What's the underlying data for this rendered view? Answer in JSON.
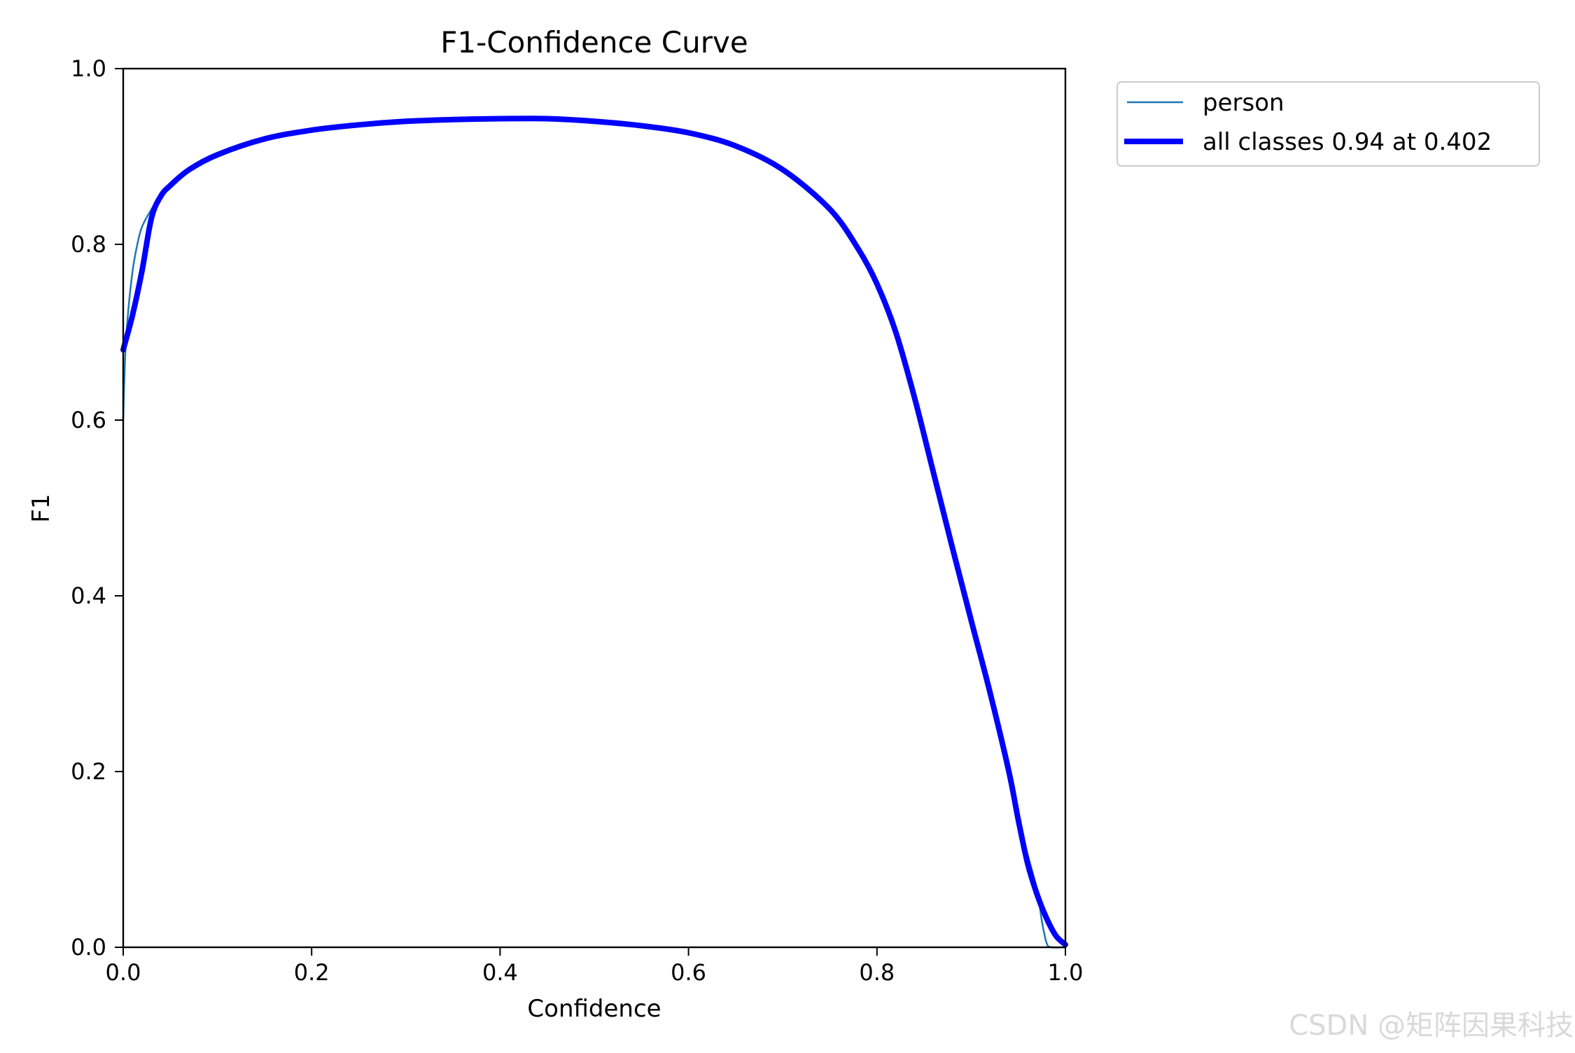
{
  "chart_data": {
    "type": "line",
    "title": "F1-Confidence Curve",
    "xlabel": "Confidence",
    "ylabel": "F1",
    "xlim": [
      0.0,
      1.0
    ],
    "ylim": [
      0.0,
      1.0
    ],
    "grid": false,
    "legend_position": "outside top-right",
    "x_ticks": [
      0.0,
      0.2,
      0.4,
      0.6,
      0.8,
      1.0
    ],
    "y_ticks": [
      0.0,
      0.2,
      0.4,
      0.6,
      0.8,
      1.0
    ],
    "x_tick_labels": [
      "0.0",
      "0.2",
      "0.4",
      "0.6",
      "0.8",
      "1.0"
    ],
    "y_tick_labels": [
      "0.0",
      "0.2",
      "0.4",
      "0.6",
      "0.8",
      "1.0"
    ],
    "series": [
      {
        "name": "person",
        "color": "#1f77b4",
        "style": "thin",
        "x": [
          0.0,
          0.002,
          0.005,
          0.01,
          0.015,
          0.02,
          0.03,
          0.04,
          0.05,
          0.07,
          0.1,
          0.15,
          0.2,
          0.25,
          0.3,
          0.35,
          0.4,
          0.45,
          0.5,
          0.55,
          0.6,
          0.65,
          0.7,
          0.75,
          0.78,
          0.8,
          0.82,
          0.84,
          0.86,
          0.88,
          0.9,
          0.92,
          0.94,
          0.95,
          0.96,
          0.97,
          0.975,
          0.98,
          0.985,
          1.0
        ],
        "y": [
          0.6,
          0.67,
          0.72,
          0.77,
          0.8,
          0.82,
          0.84,
          0.855,
          0.867,
          0.885,
          0.902,
          0.92,
          0.93,
          0.936,
          0.94,
          0.942,
          0.943,
          0.943,
          0.94,
          0.935,
          0.927,
          0.912,
          0.885,
          0.84,
          0.795,
          0.755,
          0.7,
          0.625,
          0.54,
          0.455,
          0.372,
          0.29,
          0.2,
          0.145,
          0.105,
          0.065,
          0.03,
          0.005,
          0.0,
          0.0
        ]
      },
      {
        "name": "all classes 0.94 at 0.402",
        "color": "#0000ff",
        "style": "thick",
        "x": [
          0.0,
          0.01,
          0.02,
          0.03,
          0.04,
          0.05,
          0.07,
          0.1,
          0.15,
          0.2,
          0.25,
          0.3,
          0.35,
          0.4,
          0.45,
          0.5,
          0.55,
          0.6,
          0.65,
          0.7,
          0.75,
          0.78,
          0.8,
          0.82,
          0.84,
          0.86,
          0.88,
          0.9,
          0.92,
          0.94,
          0.95,
          0.96,
          0.97,
          0.98,
          0.99,
          1.0
        ],
        "y": [
          0.68,
          0.72,
          0.77,
          0.83,
          0.855,
          0.867,
          0.885,
          0.902,
          0.92,
          0.93,
          0.936,
          0.94,
          0.942,
          0.943,
          0.943,
          0.94,
          0.935,
          0.927,
          0.912,
          0.885,
          0.84,
          0.795,
          0.755,
          0.7,
          0.625,
          0.54,
          0.455,
          0.372,
          0.29,
          0.2,
          0.145,
          0.095,
          0.06,
          0.033,
          0.013,
          0.003
        ]
      }
    ]
  },
  "watermark": "CSDN @矩阵因果科技"
}
